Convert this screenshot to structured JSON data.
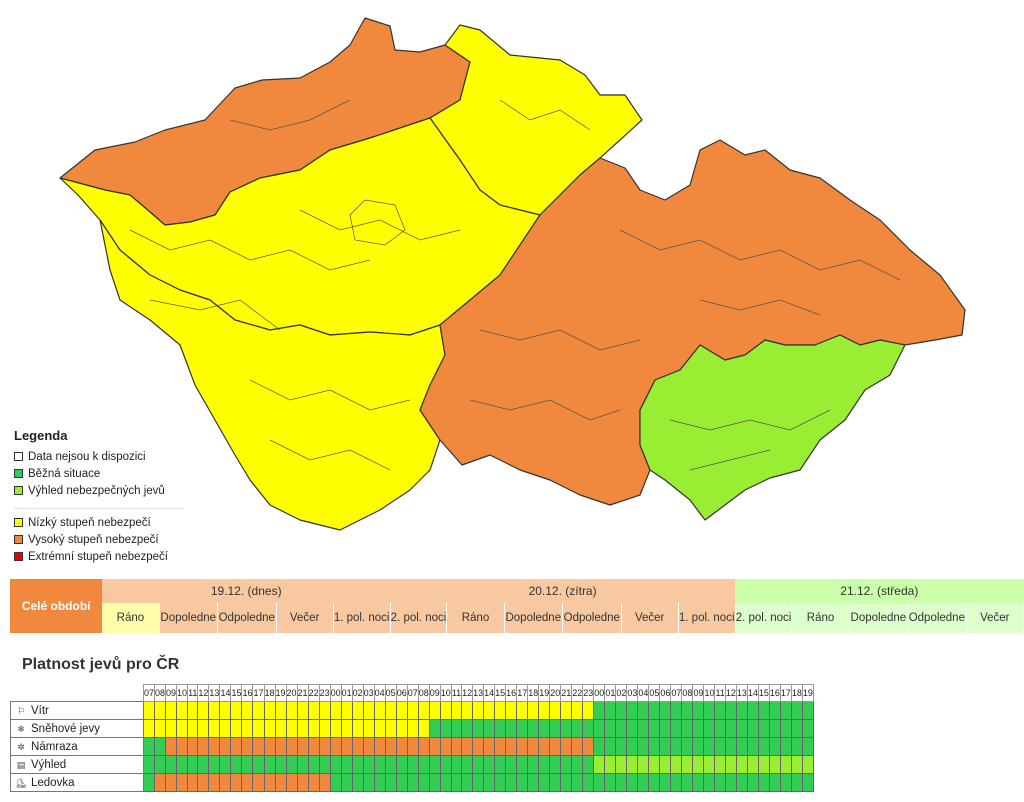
{
  "colors": {
    "na": "#ffffff",
    "normal": "#33cc55",
    "outlook": "#99ee33",
    "low": "#ffff00",
    "high": "#f0893d",
    "extreme": "#ee0000",
    "today_bg": "#f8c8a0",
    "tomorrow_bg": "#f8c8a0",
    "wednesday_bg": "#ccffaa",
    "slot_active": "#ffffaa",
    "slot_today": "#f8c8a0",
    "slot_wed": "#ddffcc"
  },
  "map": {
    "regions": [
      {
        "id": "north-west",
        "level": "high"
      },
      {
        "id": "north-east",
        "level": "low"
      },
      {
        "id": "west-central",
        "level": "low"
      },
      {
        "id": "south-west",
        "level": "low"
      },
      {
        "id": "east",
        "level": "high"
      },
      {
        "id": "south-east",
        "level": "outlook"
      }
    ]
  },
  "legend": {
    "title": "Legenda",
    "items": [
      {
        "label": "Data nejsou k dispozici",
        "level": "na"
      },
      {
        "label": "Běžná situace",
        "level": "normal"
      },
      {
        "label": "Výhled nebezpečných jevů",
        "level": "outlook"
      }
    ],
    "items2": [
      {
        "label": "Nízký stupeň nebezpečí",
        "level": "low"
      },
      {
        "label": "Vysoký stupeň nebezpečí",
        "level": "high"
      },
      {
        "label": "Extrémní stupeň nebezpečí",
        "level": "extreme"
      }
    ]
  },
  "periods": {
    "whole_label": "Celé období",
    "days": [
      {
        "label": "19.12. (dnes)",
        "bg": "today_bg",
        "slots": [
          {
            "label": "Ráno",
            "bg": "slot_active"
          },
          {
            "label": "Dopoledne",
            "bg": "slot_today"
          },
          {
            "label": "Odpoledne",
            "bg": "slot_today"
          },
          {
            "label": "Večer",
            "bg": "slot_today"
          },
          {
            "label": "1. pol. noci",
            "bg": "slot_today"
          }
        ]
      },
      {
        "label": "20.12. (zítra)",
        "bg": "tomorrow_bg",
        "slots": [
          {
            "label": "2. pol. noci",
            "bg": "slot_today"
          },
          {
            "label": "Ráno",
            "bg": "slot_today"
          },
          {
            "label": "Dopoledne",
            "bg": "slot_today"
          },
          {
            "label": "Odpoledne",
            "bg": "slot_today"
          },
          {
            "label": "Večer",
            "bg": "slot_today"
          },
          {
            "label": "1. pol. noci",
            "bg": "slot_today"
          }
        ]
      },
      {
        "label": "21.12. (středa)",
        "bg": "wednesday_bg",
        "slots": [
          {
            "label": "2. pol. noci",
            "bg": "slot_wed"
          },
          {
            "label": "Ráno",
            "bg": "slot_wed"
          },
          {
            "label": "Dopoledne",
            "bg": "slot_wed"
          },
          {
            "label": "Odpoledne",
            "bg": "slot_wed"
          },
          {
            "label": "Večer",
            "bg": "slot_wed"
          }
        ]
      }
    ]
  },
  "validity": {
    "title": "Platnost jevů pro ČR",
    "hours": [
      "07",
      "08",
      "09",
      "10",
      "11",
      "12",
      "13",
      "14",
      "15",
      "16",
      "17",
      "18",
      "19",
      "20",
      "21",
      "22",
      "23",
      "00",
      "01",
      "02",
      "03",
      "04",
      "05",
      "06",
      "07",
      "08",
      "09",
      "10",
      "11",
      "12",
      "13",
      "14",
      "15",
      "16",
      "17",
      "18",
      "19",
      "20",
      "21",
      "22",
      "23",
      "00",
      "01",
      "02",
      "03",
      "04",
      "05",
      "06",
      "07",
      "08",
      "09",
      "10",
      "11",
      "12",
      "13",
      "14",
      "15",
      "16",
      "17",
      "18",
      "19"
    ],
    "rows": [
      {
        "label": "Vítr",
        "icon": "wind-flag-icon",
        "glyph": "⚐",
        "segments": [
          [
            "low",
            41
          ],
          [
            "normal",
            20
          ]
        ]
      },
      {
        "label": "Sněhové jevy",
        "icon": "snow-icon",
        "glyph": "❄",
        "segments": [
          [
            "low",
            26
          ],
          [
            "normal",
            35
          ]
        ]
      },
      {
        "label": "Námraza",
        "icon": "rime-icon",
        "glyph": "✲",
        "segments": [
          [
            "normal",
            2
          ],
          [
            "high",
            39
          ],
          [
            "normal",
            20
          ]
        ]
      },
      {
        "label": "Výhled",
        "icon": "outlook-icon",
        "glyph": "▤",
        "segments": [
          [
            "normal",
            41
          ],
          [
            "outlook",
            20
          ]
        ]
      },
      {
        "label": "Ledovka",
        "icon": "glaze-ice-icon",
        "glyph": "⛸",
        "segments": [
          [
            "normal",
            1
          ],
          [
            "high",
            16
          ],
          [
            "normal",
            44
          ]
        ]
      }
    ]
  }
}
